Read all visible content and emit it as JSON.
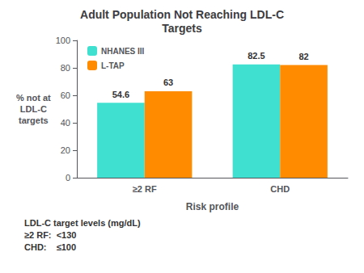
{
  "chart_data": {
    "type": "bar",
    "title": "Adult Population Not Reaching LDL-C\nTargets",
    "categories": [
      "≥2 RF",
      "CHD"
    ],
    "series": [
      {
        "name": "NHANES III",
        "color": "#40E0D0",
        "values": [
          54.6,
          82.5
        ]
      },
      {
        "name": "L-TAP",
        "color": "#FF8C00",
        "values": [
          63,
          82
        ]
      }
    ],
    "x_label": "Risk profile",
    "y_label": "% not at\nLDL-C\ntargets",
    "ylim": [
      0,
      100
    ],
    "yticks": [
      0,
      20,
      40,
      60,
      80,
      100
    ],
    "data_labels": true,
    "grid": false,
    "legend": "upper left",
    "annotations": [
      "LDL-C target levels (mg/dL)",
      "≥2 RF:  <130",
      "CHD:    ≤100"
    ]
  }
}
